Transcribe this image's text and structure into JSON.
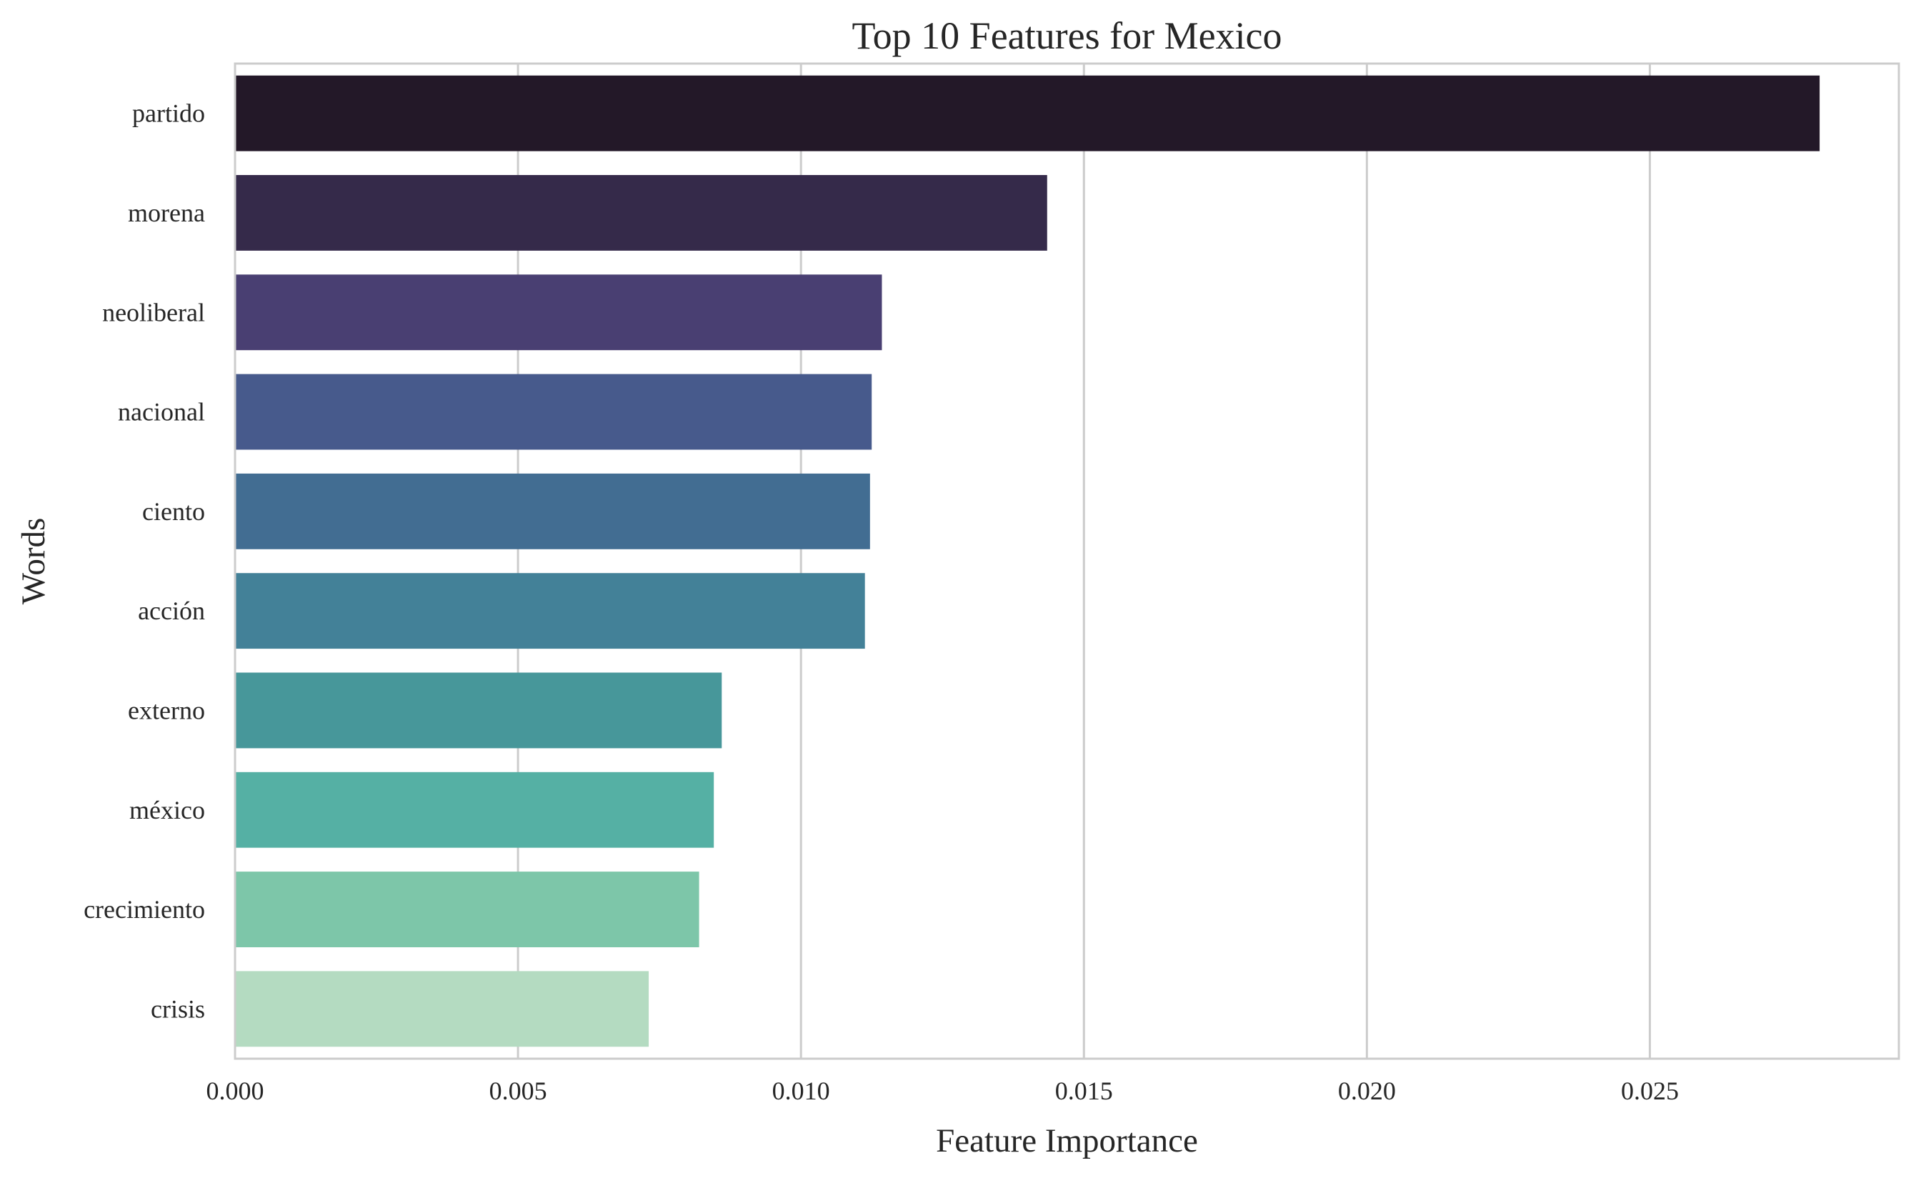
{
  "chart_data": {
    "type": "bar",
    "orientation": "horizontal",
    "title": "Top 10 Features for Mexico",
    "xlabel": "Feature Importance",
    "ylabel": "Words",
    "categories": [
      "partido",
      "morena",
      "neoliberal",
      "nacional",
      "ciento",
      "acción",
      "externo",
      "méxico",
      "crecimiento",
      "crisis"
    ],
    "values": [
      0.028,
      0.01435,
      0.01143,
      0.01125,
      0.01122,
      0.01113,
      0.0086,
      0.00846,
      0.0082,
      0.00731
    ],
    "colors": [
      "#231828",
      "#352a4a",
      "#493f72",
      "#475a8c",
      "#426d92",
      "#438198",
      "#47979a",
      "#55b0a4",
      "#7dc6a9",
      "#b4dbc1"
    ],
    "xlim": [
      0,
      0.0294
    ],
    "xticks": [
      0.0,
      0.005,
      0.01,
      0.015,
      0.02,
      0.025
    ],
    "xtick_labels": [
      "0.000",
      "0.005",
      "0.010",
      "0.015",
      "0.020",
      "0.025"
    ],
    "grid": true
  }
}
